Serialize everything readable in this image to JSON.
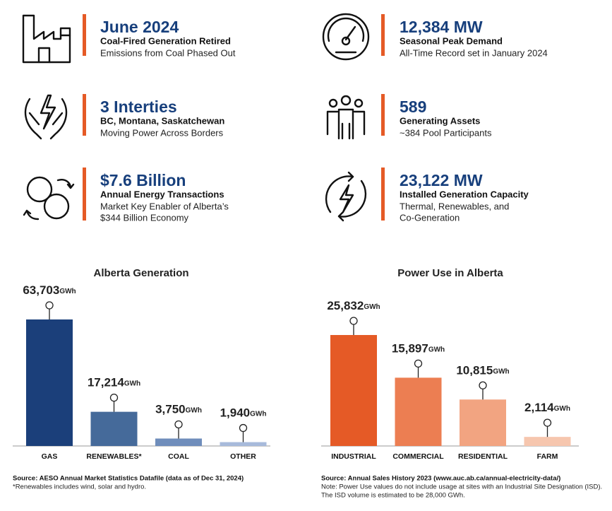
{
  "stats": [
    {
      "title": "June 2024",
      "subtitle": "Coal-Fired Generation Retired",
      "description": [
        "Emissions from Coal Phased Out"
      ]
    },
    {
      "title": "12,384 MW",
      "subtitle": "Seasonal Peak Demand",
      "description": [
        "All-Time Record set in January 2024"
      ]
    },
    {
      "title": "3 Interties",
      "subtitle": "BC, Montana, Saskatchewan",
      "description": [
        "Moving Power Across Borders"
      ]
    },
    {
      "title": "589",
      "subtitle": "Generating Assets",
      "description": [
        "~384 Pool Participants"
      ]
    },
    {
      "title": "$7.6 Billion",
      "subtitle": "Annual Energy Transactions",
      "description": [
        "Market Key Enabler of Alberta’s",
        "$344 Billion Economy"
      ]
    },
    {
      "title": "23,122 MW",
      "subtitle": "Installed Generation Capacity",
      "description": [
        "Thermal, Renewables, and",
        "Co-Generation"
      ]
    }
  ],
  "chart_data": [
    {
      "type": "bar",
      "title": "Alberta Generation",
      "unit": "GWh",
      "categories": [
        "GAS",
        "RENEWABLES*",
        "COAL",
        "OTHER"
      ],
      "values": [
        63703,
        17214,
        3750,
        1940
      ],
      "value_labels": [
        "63,703",
        "17,214",
        "3,750",
        "1,940"
      ],
      "colors": [
        "#1b3f7a",
        "#456a9a",
        "#6f8dbb",
        "#a7badb"
      ],
      "source": "Source: AESO Annual Market Statistics Datafile (data as of Dec 31, 2024)",
      "notes": [
        "*Renewables includes wind, solar and hydro."
      ]
    },
    {
      "type": "bar",
      "title": "Power Use in Alberta",
      "unit": "GWh",
      "categories": [
        "INDUSTRIAL",
        "COMMERCIAL",
        "RESIDENTIAL",
        "FARM"
      ],
      "values": [
        25832,
        15897,
        10815,
        2114
      ],
      "value_labels": [
        "25,832",
        "15,897",
        "10,815",
        "2,114"
      ],
      "colors": [
        "#e55a26",
        "#ec7e52",
        "#f2a481",
        "#f6c6ae"
      ],
      "source": "Source: Annual Sales History 2023 (www.auc.ab.ca/annual-electricity-data/)",
      "notes": [
        "Note: Power Use values do not include usage at sites with an Industrial Site Designation (ISD).",
        "The ISD volume is estimated to be 28,000 GWh."
      ]
    }
  ]
}
